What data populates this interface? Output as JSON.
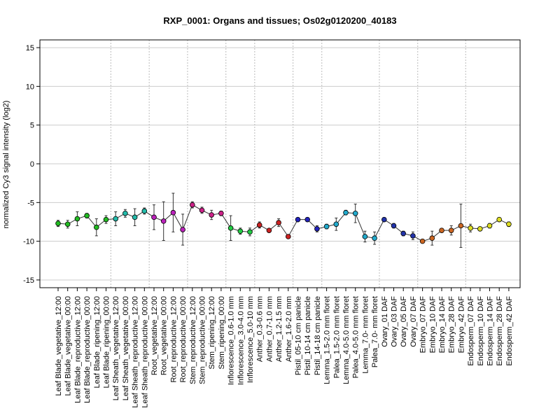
{
  "chart_data": {
    "type": "line",
    "title": "RXP_0001: Organs and tissues; Os02g0120200_40183",
    "xlabel": "",
    "ylabel": "normalized Cy3 signal intensity (log2)",
    "ylim": [
      -16,
      16
    ],
    "yticks": [
      -15,
      -10,
      -5,
      0,
      5,
      10,
      15
    ],
    "grid": "horizontal at y ticks; dotted vertical separators between sample groups",
    "categories": [
      "Leaf Blade_vegetative_12:00",
      "Leaf Blade_vegetative_00:00",
      "Leaf Blade_reproductive_12:00",
      "Leaf Blade_reproductive_00:00",
      "Leaf Blade_ripening_12:00",
      "Leaf Blade_ripening_00:00",
      "Leaf Sheath_vegetative_12:00",
      "Leaf Sheath_vegetative_00:00",
      "Leaf Sheath_reproductive_12:00",
      "Leaf Sheath_reproductive_00:00",
      "Root_vegetative_12:00",
      "Root_vegetative_00:00",
      "Root_reproductive_12:00",
      "Root_reproductive_00:00",
      "Stem_reproductive_12:00",
      "Stem_reproductive_00:00",
      "Stem_ripening_12:00",
      "Stem_ripening_00:00",
      "Inflorescence_0.6-1.0 mm",
      "Inflorescence_3.0-4.0 mm",
      "Inflorescence_5.0-10 mm",
      "Anther_0.3-0.6 mm",
      "Anther_0.7-1.0 mm",
      "Anther_1.2-1.5 mm",
      "Anther_1.6-2.0 mm",
      "Pistil_05-10 cm panicle",
      "Pistil_10-14 cm panicle",
      "Pistil_14-18 cm panicle",
      "Lemma_1.5-2.0 mm floret",
      "Palea_1.5-2.0 mm floret",
      "Lemma_4.0-5.0 mm floret",
      "Palea_4.0-5.0 mm floret",
      "Lemma_7.0- mm floret",
      "Palea_7.0- mm floret",
      "Ovary_01 DAF",
      "Ovary_03 DAF",
      "Ovary_05 DAF",
      "Ovary_07 DAF",
      "Embryo_07 DAF",
      "Embryo_10 DAF",
      "Embryo_14 DAF",
      "Embryo_28 DAF",
      "Embryo_42 DAF",
      "Endosperm_07 DAF",
      "Endosperm_10 DAF",
      "Endosperm_14 DAF",
      "Endosperm_28 DAF",
      "Endosperm_42 DAF"
    ],
    "values": [
      -7.7,
      -7.8,
      -7.1,
      -6.7,
      -8.2,
      -7.2,
      -7.1,
      -6.4,
      -6.9,
      -6.1,
      -6.9,
      -7.4,
      -6.3,
      -8.5,
      -5.3,
      -6.0,
      -6.6,
      -6.4,
      -8.3,
      -8.7,
      -8.8,
      -7.9,
      -8.6,
      -7.6,
      -9.4,
      -7.2,
      -7.2,
      -8.4,
      -8.1,
      -7.8,
      -6.3,
      -6.4,
      -9.4,
      -9.6,
      -7.2,
      -8.0,
      -9.0,
      -9.3,
      -10.0,
      -9.6,
      -8.6,
      -8.6,
      -8.0,
      -8.3,
      -8.4,
      -8.0,
      -7.2,
      -7.8
    ],
    "errors": [
      0.4,
      0.5,
      0.9,
      0.3,
      1.1,
      0.5,
      0.9,
      0.5,
      1.1,
      0.4,
      1.6,
      2.5,
      2.5,
      2.0,
      0.4,
      0.4,
      0.6,
      0.3,
      1.6,
      0.4,
      0.5,
      0.4,
      0.2,
      0.5,
      0.2,
      0.2,
      0.2,
      0.4,
      0.3,
      0.8,
      0.3,
      1.2,
      0.7,
      0.8,
      0.2,
      0.3,
      0.3,
      0.5,
      0.2,
      0.9,
      0.2,
      0.6,
      2.8,
      0.5,
      0.2,
      0.3,
      0.2,
      0.3
    ],
    "colors": [
      "#22bb22",
      "#22bb22",
      "#22bb22",
      "#22bb22",
      "#22bb22",
      "#22bb22",
      "#22bbaa",
      "#22bbaa",
      "#22bbaa",
      "#22bbaa",
      "#bb22bb",
      "#bb22bb",
      "#bb22bb",
      "#bb22bb",
      "#cc2288",
      "#cc2288",
      "#cc2288",
      "#cc2288",
      "#22cc44",
      "#22cc44",
      "#22cc44",
      "#cc2222",
      "#cc2222",
      "#cc2222",
      "#cc2222",
      "#2222bb",
      "#2222bb",
      "#2222bb",
      "#22aacc",
      "#22aacc",
      "#22aacc",
      "#22aacc",
      "#22aacc",
      "#22aacc",
      "#2233aa",
      "#2233aa",
      "#2233aa",
      "#2233aa",
      "#cc6622",
      "#cc6622",
      "#cc6622",
      "#cc6622",
      "#cc6622",
      "#dddd22",
      "#dddd22",
      "#dddd22",
      "#dddd22",
      "#dddd22"
    ],
    "group_separators_after_index": [
      5,
      9,
      13,
      17,
      20,
      24,
      27,
      33,
      37,
      42
    ]
  }
}
